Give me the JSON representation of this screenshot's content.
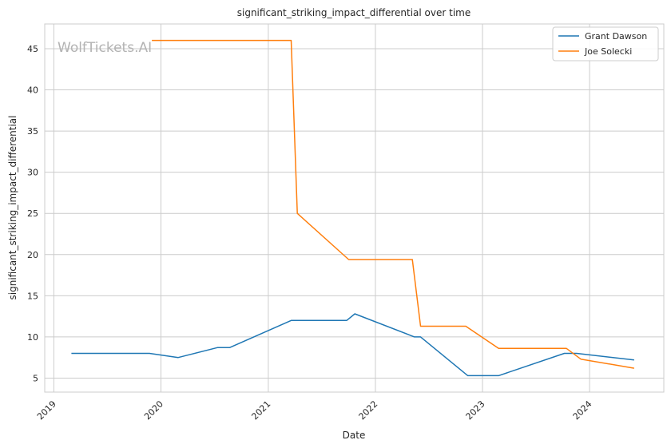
{
  "chart_data": {
    "type": "line",
    "title": "significant_striking_impact_differential over time",
    "xlabel": "Date",
    "ylabel": "significant_striking_impact_differential",
    "watermark": "WolfTickets.AI",
    "xlim": [
      "2018-12-01",
      "2024-09-10"
    ],
    "ylim": [
      3.3,
      48
    ],
    "x_ticks": [
      "2019-01-01",
      "2020-01-01",
      "2021-01-01",
      "2022-01-01",
      "2023-01-01",
      "2024-01-01"
    ],
    "x_tick_labels": [
      "2019",
      "2020",
      "2021",
      "2022",
      "2023",
      "2024"
    ],
    "y_ticks": [
      5,
      10,
      15,
      20,
      25,
      30,
      35,
      40,
      45
    ],
    "y_tick_labels": [
      "5",
      "10",
      "15",
      "20",
      "25",
      "30",
      "35",
      "40",
      "45"
    ],
    "grid": true,
    "legend_position": "top-right",
    "series": [
      {
        "name": "Grant Dawson",
        "color": "#1f77b4",
        "points": [
          {
            "x": "2019-03-02",
            "y": 8.0
          },
          {
            "x": "2019-11-23",
            "y": 8.0
          },
          {
            "x": "2020-02-29",
            "y": 7.5
          },
          {
            "x": "2020-07-11",
            "y": 8.7
          },
          {
            "x": "2020-08-22",
            "y": 8.7
          },
          {
            "x": "2021-03-20",
            "y": 12.0
          },
          {
            "x": "2021-09-25",
            "y": 12.0
          },
          {
            "x": "2021-10-23",
            "y": 12.8
          },
          {
            "x": "2022-05-14",
            "y": 10.0
          },
          {
            "x": "2022-06-04",
            "y": 10.0
          },
          {
            "x": "2022-11-12",
            "y": 5.3
          },
          {
            "x": "2023-02-25",
            "y": 5.3
          },
          {
            "x": "2023-10-07",
            "y": 8.0
          },
          {
            "x": "2023-11-18",
            "y": 8.0
          },
          {
            "x": "2024-06-01",
            "y": 7.2
          }
        ]
      },
      {
        "name": "Joe Solecki",
        "color": "#ff7f0e",
        "points": [
          {
            "x": "2019-12-01",
            "y": 46.0
          },
          {
            "x": "2021-03-20",
            "y": 46.0
          },
          {
            "x": "2021-04-10",
            "y": 25.0
          },
          {
            "x": "2021-10-02",
            "y": 19.4
          },
          {
            "x": "2022-05-07",
            "y": 19.4
          },
          {
            "x": "2022-06-04",
            "y": 11.3
          },
          {
            "x": "2022-11-05",
            "y": 11.3
          },
          {
            "x": "2023-02-25",
            "y": 8.6
          },
          {
            "x": "2023-10-14",
            "y": 8.6
          },
          {
            "x": "2023-12-02",
            "y": 7.3
          },
          {
            "x": "2024-06-01",
            "y": 6.2
          }
        ]
      }
    ]
  }
}
